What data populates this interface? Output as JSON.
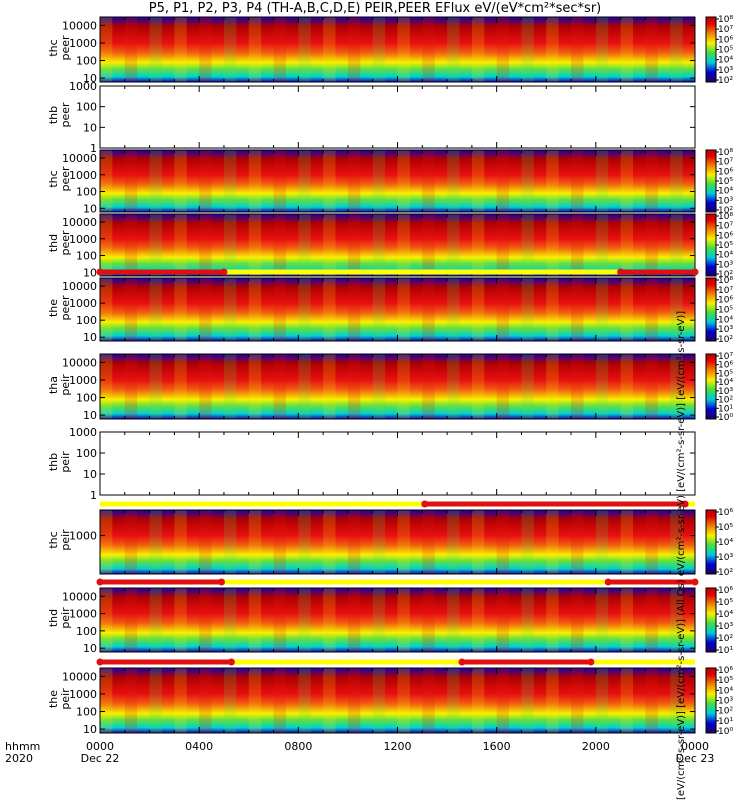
{
  "title": "P5, P1, P2, P3, P4 (TH-A,B,C,D,E) PEIR,PEER EFlux eV/(eV*cm²*sec*sr)",
  "colorbar_title": "[eV/(cm²-s-sr-eV)] [eV/(cm²-s-sr-eV)] (All Qs) eV/(cm²-s-sr-eV) [eV/(cm²-s-sr-eV)] [eV/(cm²-s-sr-eV)]",
  "colors": {
    "low": "#1b00a8",
    "mid": "#00d0d0",
    "green": "#60e040",
    "yellow": "#f8f000",
    "high": "#e81010",
    "dark": "#b00000",
    "flag_red": "#e01010",
    "flag_yellow": "#ffff00"
  },
  "chart_data": {
    "type": "heatmap",
    "x_axis": {
      "label_top": "hhmm",
      "label_bottom": "2020",
      "ticks": [
        "0000",
        "0400",
        "0800",
        "1200",
        "1600",
        "2000",
        "0000"
      ],
      "tick_dates": [
        "Dec 22",
        "",
        "",
        "",
        "",
        "",
        "Dec 23"
      ],
      "range_hours": [
        0,
        24
      ]
    },
    "panels": [
      {
        "name": "thc peer",
        "line1": "thc",
        "line2": "peer",
        "ylog": true,
        "yrange": [
          6,
          30000
        ],
        "yticks": [
          "10",
          "100",
          "1000",
          "10000"
        ],
        "has_data": true,
        "colorbar": [
          "10²",
          "10³",
          "10⁴",
          "10⁵",
          "10⁶",
          "10⁷",
          "10⁸"
        ],
        "flag": null
      },
      {
        "name": "thb peer",
        "line1": "thb",
        "line2": "peer",
        "ylog": true,
        "yrange": [
          1,
          1000
        ],
        "yticks": [
          "1",
          "10",
          "100",
          "1000"
        ],
        "has_data": false,
        "colorbar": [],
        "flag": null
      },
      {
        "name": "thc peer",
        "line1": "thc",
        "line2": "peer",
        "ylog": true,
        "yrange": [
          6,
          30000
        ],
        "yticks": [
          "10",
          "100",
          "1000",
          "10000"
        ],
        "has_data": true,
        "colorbar": [
          "10²",
          "10³",
          "10⁴",
          "10⁵",
          "10⁶",
          "10⁷",
          "10⁸"
        ],
        "flag": null
      },
      {
        "name": "thd peer",
        "line1": "thd",
        "line2": "peer",
        "ylog": true,
        "yrange": [
          6,
          30000
        ],
        "yticks": [
          "10",
          "100",
          "1000",
          "10000"
        ],
        "has_data": true,
        "colorbar": [
          "10²",
          "10³",
          "10⁴",
          "10⁵",
          "10⁶",
          "10⁷",
          "10⁸"
        ],
        "flag": null
      },
      {
        "name": "the peer",
        "line1": "the",
        "line2": "peer",
        "ylog": true,
        "yrange": [
          6,
          30000
        ],
        "yticks": [
          "10",
          "100",
          "1000",
          "10000"
        ],
        "has_data": true,
        "colorbar": [
          "10²",
          "10³",
          "10⁴",
          "10⁵",
          "10⁶",
          "10⁷",
          "10⁸"
        ],
        "flag": {
          "yellow": [
            0,
            24
          ],
          "red": [
            [
              0,
              5.0
            ],
            [
              21.0,
              24
            ]
          ]
        }
      },
      {
        "name": "tha peir",
        "line1": "tha",
        "line2": "peir",
        "ylog": true,
        "yrange": [
          6,
          30000
        ],
        "yticks": [
          "10",
          "100",
          "1000",
          "10000"
        ],
        "has_data": true,
        "colorbar": [
          "10⁰",
          "10¹",
          "10²",
          "10³",
          "10⁴",
          "10⁵",
          "10⁶",
          "10⁷"
        ],
        "flag": null
      },
      {
        "name": "thb peir",
        "line1": "thb",
        "line2": "peir",
        "ylog": true,
        "yrange": [
          1,
          1000
        ],
        "yticks": [
          "1",
          "10",
          "100",
          "1000"
        ],
        "has_data": false,
        "colorbar": [],
        "flag": null
      },
      {
        "name": "thc peir",
        "line1": "thc",
        "line2": "peir",
        "ylog": true,
        "yrange": [
          6,
          30000
        ],
        "yticks": [
          "1000"
        ],
        "has_data": true,
        "colorbar": [
          "10²",
          "10³",
          "10⁴",
          "10⁵",
          "10⁶"
        ],
        "flag": {
          "yellow": [
            0,
            24
          ],
          "red": [
            [
              13.1,
              23.6
            ]
          ]
        }
      },
      {
        "name": "thd peir",
        "line1": "thd",
        "line2": "peir",
        "ylog": true,
        "yrange": [
          6,
          30000
        ],
        "yticks": [
          "10",
          "100",
          "1000",
          "10000"
        ],
        "has_data": true,
        "colorbar": [
          "10¹",
          "10²",
          "10³",
          "10⁴",
          "10⁵",
          "10⁶"
        ],
        "flag": {
          "yellow": [
            0,
            24
          ],
          "red": [
            [
              0,
              4.9
            ],
            [
              20.5,
              24
            ]
          ]
        }
      },
      {
        "name": "the peir",
        "line1": "the",
        "line2": "peir",
        "ylog": true,
        "yrange": [
          6,
          30000
        ],
        "yticks": [
          "10",
          "100",
          "1000",
          "10000"
        ],
        "has_data": true,
        "colorbar": [
          "10⁰",
          "10¹",
          "10²",
          "10³",
          "10⁴",
          "10⁵",
          "10⁶"
        ],
        "flag": {
          "yellow": [
            0,
            24
          ],
          "red": [
            [
              0,
              5.3
            ],
            [
              14.6,
              19.8
            ]
          ]
        }
      }
    ]
  }
}
